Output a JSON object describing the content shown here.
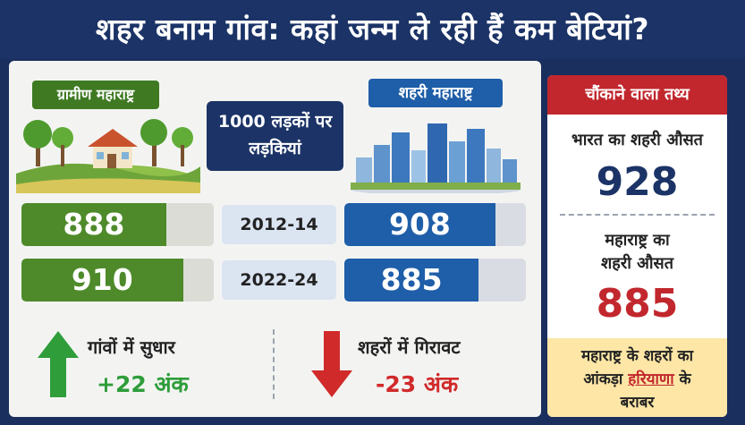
{
  "header": {
    "title": "शहर बनाम गांव: कहां जन्म ले रही हैं कम बेटियां?"
  },
  "labels": {
    "rural": "ग्रामीण महाराष्ट्र",
    "urban": "शहरी महाराष्ट्र",
    "center_line1": "1000 लड़कों पर",
    "center_line2": "लड़कियां"
  },
  "colors": {
    "rural": "#4e8a2a",
    "urban": "#1f5ea8",
    "up": "#2e9d3a",
    "down": "#d12a2a",
    "accent": "#c1272d",
    "navy": "#1b3366"
  },
  "chart_data": {
    "type": "bar",
    "categories": [
      "2012-14",
      "2022-24"
    ],
    "ylabel": "1000 लड़कों पर लड़कियां",
    "series": [
      {
        "name": "ग्रामीण महाराष्ट्र",
        "values": [
          888,
          910
        ]
      },
      {
        "name": "शहरी महाराष्ट्र",
        "values": [
          908,
          885
        ]
      }
    ]
  },
  "trends": {
    "rural": {
      "title": "गांवों में सुधार",
      "value": "+22 अंक",
      "icon": "arrow-up-icon"
    },
    "urban": {
      "title": "शहरों में गिरावट",
      "value": "-23 अंक",
      "icon": "arrow-down-icon"
    }
  },
  "side": {
    "heading": "चौंकाने वाला तथ्य",
    "india_label": "भारत का शहरी औसत",
    "india_value": "928",
    "mh_label_line1": "महाराष्ट्र का",
    "mh_label_line2": "शहरी औसत",
    "mh_value": "885",
    "note_line1": "महाराष्ट्र के शहरों का",
    "note_pre": "आंकड़ा ",
    "note_highlight": "हरियाणा",
    "note_post": " के",
    "note_line3": "बराबर"
  }
}
